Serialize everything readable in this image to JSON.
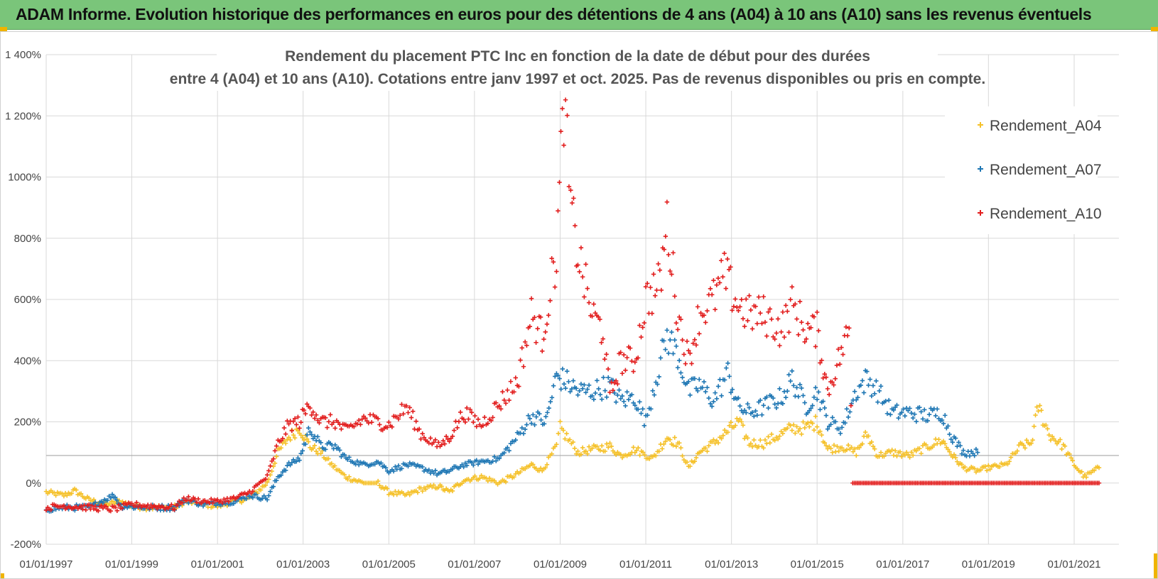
{
  "banner": {
    "title": "ADAM Informe. Evolution historique des performances en euros pour des détentions de 4 ans (A04) à 10 ans (A10) sans les revenus éventuels"
  },
  "chart_data": {
    "type": "scatter",
    "title_line1": "Rendement du placement PTC Inc en fonction de la date de début pour des durées",
    "title_line2": "entre 4 (A04) et 10 ans (A10). Cotations entre janv 1997 et oct. 2025. Pas de revenus disponibles ou pris en compte.",
    "ylim": [
      -200,
      1400
    ],
    "y_ticks": [
      -200,
      0,
      200,
      400,
      600,
      800,
      1000,
      1200,
      1400
    ],
    "y_tick_labels": [
      "-200%",
      "0%",
      "200%",
      "400%",
      "600%",
      "800%",
      "1000%",
      "1 200%",
      "1 400%"
    ],
    "x_ticks": [
      "1997-01-01",
      "1999-01-01",
      "2001-01-01",
      "2003-01-01",
      "2005-01-01",
      "2007-01-01",
      "2009-01-01",
      "2011-01-01",
      "2013-01-01",
      "2015-01-01",
      "2017-01-01",
      "2019-01-01",
      "2021-01-01"
    ],
    "x_tick_labels": [
      "01/01/1997",
      "01/01/1999",
      "01/01/2001",
      "01/01/2003",
      "01/01/2005",
      "01/01/2007",
      "01/01/2009",
      "01/01/2011",
      "01/01/2013",
      "01/01/2015",
      "01/01/2017",
      "01/01/2019",
      "01/01/2021"
    ],
    "xlim": [
      "1997-01-01",
      "2021-10-01"
    ],
    "grid": true,
    "legend_position": "top-right",
    "series": [
      {
        "name": "Rendement_A04",
        "color": "#f5c12a",
        "points": [
          [
            "1997-01-01",
            -30
          ],
          [
            "1997-06-01",
            -40
          ],
          [
            "1997-09-01",
            -25
          ],
          [
            "1998-01-01",
            -55
          ],
          [
            "1998-06-01",
            -70
          ],
          [
            "1998-10-01",
            -60
          ],
          [
            "1999-01-01",
            -75
          ],
          [
            "1999-06-01",
            -80
          ],
          [
            "2000-01-01",
            -80
          ],
          [
            "2000-04-01",
            -60
          ],
          [
            "2000-09-01",
            -70
          ],
          [
            "2001-01-01",
            -75
          ],
          [
            "2001-06-01",
            -60
          ],
          [
            "2001-10-01",
            -50
          ],
          [
            "2002-03-01",
            0
          ],
          [
            "2002-06-01",
            100
          ],
          [
            "2002-09-01",
            150
          ],
          [
            "2002-12-01",
            180
          ],
          [
            "2003-03-01",
            120
          ],
          [
            "2003-06-01",
            100
          ],
          [
            "2003-09-01",
            60
          ],
          [
            "2004-01-01",
            20
          ],
          [
            "2004-06-01",
            0
          ],
          [
            "2004-10-01",
            0
          ],
          [
            "2005-01-01",
            -30
          ],
          [
            "2005-06-01",
            -40
          ],
          [
            "2005-10-01",
            -20
          ],
          [
            "2006-03-01",
            -10
          ],
          [
            "2006-06-01",
            -30
          ],
          [
            "2006-10-01",
            10
          ],
          [
            "2007-03-01",
            20
          ],
          [
            "2007-08-01",
            0
          ],
          [
            "2008-01-01",
            30
          ],
          [
            "2008-05-01",
            60
          ],
          [
            "2008-08-01",
            40
          ],
          [
            "2008-12-01",
            120
          ],
          [
            "2009-01-01",
            180
          ],
          [
            "2009-06-01",
            100
          ],
          [
            "2009-10-01",
            110
          ],
          [
            "2010-03-01",
            120
          ],
          [
            "2010-06-01",
            90
          ],
          [
            "2010-10-01",
            110
          ],
          [
            "2011-03-01",
            80
          ],
          [
            "2011-07-01",
            150
          ],
          [
            "2011-10-01",
            130
          ],
          [
            "2012-01-01",
            50
          ],
          [
            "2012-04-01",
            100
          ],
          [
            "2012-08-01",
            130
          ],
          [
            "2012-12-01",
            170
          ],
          [
            "2013-03-01",
            200
          ],
          [
            "2013-06-01",
            130
          ],
          [
            "2013-10-01",
            130
          ],
          [
            "2014-03-01",
            160
          ],
          [
            "2014-06-01",
            180
          ],
          [
            "2014-10-01",
            180
          ],
          [
            "2015-01-01",
            200
          ],
          [
            "2015-04-01",
            110
          ],
          [
            "2015-08-01",
            120
          ],
          [
            "2015-12-01",
            100
          ],
          [
            "2016-03-01",
            160
          ],
          [
            "2016-06-01",
            90
          ],
          [
            "2016-10-01",
            100
          ],
          [
            "2017-03-01",
            90
          ],
          [
            "2017-08-01",
            120
          ],
          [
            "2017-12-01",
            140
          ],
          [
            "2018-03-01",
            90
          ],
          [
            "2018-06-01",
            50
          ],
          [
            "2018-10-01",
            40
          ],
          [
            "2019-01-01",
            50
          ],
          [
            "2019-06-01",
            60
          ],
          [
            "2019-10-01",
            120
          ],
          [
            "2020-01-01",
            130
          ],
          [
            "2020-03-01",
            250
          ],
          [
            "2020-06-01",
            160
          ],
          [
            "2020-10-01",
            120
          ],
          [
            "2021-01-01",
            60
          ],
          [
            "2021-04-01",
            20
          ],
          [
            "2021-08-01",
            50
          ]
        ]
      },
      {
        "name": "Rendement_A07",
        "color": "#1f77b4",
        "points": [
          [
            "1997-01-01",
            -85
          ],
          [
            "1997-06-01",
            -80
          ],
          [
            "1998-01-01",
            -80
          ],
          [
            "1998-08-01",
            -40
          ],
          [
            "1998-10-01",
            -75
          ],
          [
            "1999-06-01",
            -80
          ],
          [
            "2000-01-01",
            -80
          ],
          [
            "2000-04-01",
            -55
          ],
          [
            "2000-09-01",
            -70
          ],
          [
            "2001-01-01",
            -65
          ],
          [
            "2001-06-01",
            -60
          ],
          [
            "2001-10-01",
            -40
          ],
          [
            "2002-03-01",
            -50
          ],
          [
            "2002-06-01",
            20
          ],
          [
            "2002-09-01",
            60
          ],
          [
            "2002-12-01",
            80
          ],
          [
            "2003-03-01",
            180
          ],
          [
            "2003-06-01",
            120
          ],
          [
            "2003-10-01",
            120
          ],
          [
            "2004-01-01",
            80
          ],
          [
            "2004-06-01",
            60
          ],
          [
            "2004-10-01",
            70
          ],
          [
            "2005-01-01",
            40
          ],
          [
            "2005-06-01",
            60
          ],
          [
            "2005-10-01",
            50
          ],
          [
            "2006-03-01",
            30
          ],
          [
            "2006-06-01",
            40
          ],
          [
            "2006-10-01",
            60
          ],
          [
            "2007-03-01",
            70
          ],
          [
            "2007-08-01",
            80
          ],
          [
            "2008-01-01",
            150
          ],
          [
            "2008-05-01",
            220
          ],
          [
            "2008-09-01",
            200
          ],
          [
            "2008-12-01",
            350
          ],
          [
            "2009-03-01",
            330
          ],
          [
            "2009-06-01",
            300
          ],
          [
            "2009-10-01",
            300
          ],
          [
            "2010-03-01",
            320
          ],
          [
            "2010-06-01",
            270
          ],
          [
            "2010-10-01",
            280
          ],
          [
            "2011-01-01",
            200
          ],
          [
            "2011-03-01",
            300
          ],
          [
            "2011-07-01",
            480
          ],
          [
            "2011-10-01",
            420
          ],
          [
            "2012-01-01",
            300
          ],
          [
            "2012-04-01",
            320
          ],
          [
            "2012-08-01",
            270
          ],
          [
            "2012-12-01",
            360
          ],
          [
            "2013-03-01",
            250
          ],
          [
            "2013-06-01",
            230
          ],
          [
            "2013-10-01",
            250
          ],
          [
            "2014-03-01",
            280
          ],
          [
            "2014-06-01",
            340
          ],
          [
            "2014-10-01",
            250
          ],
          [
            "2015-01-01",
            300
          ],
          [
            "2015-04-01",
            200
          ],
          [
            "2015-08-01",
            180
          ],
          [
            "2015-12-01",
            300
          ],
          [
            "2016-03-01",
            340
          ],
          [
            "2016-06-01",
            300
          ],
          [
            "2016-10-01",
            230
          ],
          [
            "2017-03-01",
            230
          ],
          [
            "2017-08-01",
            220
          ],
          [
            "2017-12-01",
            230
          ],
          [
            "2018-03-01",
            150
          ],
          [
            "2018-06-01",
            100
          ],
          [
            "2018-10-01",
            100
          ]
        ]
      },
      {
        "name": "Rendement_A10",
        "color": "#e21e1e",
        "points": [
          [
            "1997-01-01",
            -80
          ],
          [
            "1997-06-01",
            -75
          ],
          [
            "1998-01-01",
            -80
          ],
          [
            "1998-08-01",
            -85
          ],
          [
            "1999-01-01",
            -70
          ],
          [
            "1999-06-01",
            -75
          ],
          [
            "2000-01-01",
            -80
          ],
          [
            "2000-04-01",
            -50
          ],
          [
            "2000-09-01",
            -60
          ],
          [
            "2001-01-01",
            -60
          ],
          [
            "2001-06-01",
            -50
          ],
          [
            "2001-10-01",
            -30
          ],
          [
            "2002-03-01",
            20
          ],
          [
            "2002-06-01",
            130
          ],
          [
            "2002-09-01",
            190
          ],
          [
            "2002-12-01",
            200
          ],
          [
            "2003-03-01",
            260
          ],
          [
            "2003-06-01",
            200
          ],
          [
            "2003-10-01",
            200
          ],
          [
            "2004-01-01",
            170
          ],
          [
            "2004-06-01",
            210
          ],
          [
            "2004-10-01",
            200
          ],
          [
            "2005-01-01",
            190
          ],
          [
            "2005-06-01",
            250
          ],
          [
            "2005-10-01",
            160
          ],
          [
            "2006-03-01",
            120
          ],
          [
            "2006-06-01",
            150
          ],
          [
            "2006-10-01",
            230
          ],
          [
            "2007-03-01",
            190
          ],
          [
            "2007-08-01",
            260
          ],
          [
            "2008-01-01",
            330
          ],
          [
            "2008-05-01",
            550
          ],
          [
            "2008-08-01",
            480
          ],
          [
            "2008-12-01",
            750
          ],
          [
            "2009-02-01",
            1250
          ],
          [
            "2009-04-01",
            900
          ],
          [
            "2009-06-01",
            750
          ],
          [
            "2009-10-01",
            550
          ],
          [
            "2010-01-01",
            500
          ],
          [
            "2010-03-01",
            280
          ],
          [
            "2010-06-01",
            400
          ],
          [
            "2010-10-01",
            400
          ],
          [
            "2011-01-01",
            600
          ],
          [
            "2011-05-01",
            650
          ],
          [
            "2011-07-01",
            850
          ],
          [
            "2011-10-01",
            550
          ],
          [
            "2012-01-01",
            400
          ],
          [
            "2012-04-01",
            550
          ],
          [
            "2012-08-01",
            600
          ],
          [
            "2012-11-01",
            680
          ],
          [
            "2013-03-01",
            580
          ],
          [
            "2013-06-01",
            550
          ],
          [
            "2013-10-01",
            550
          ],
          [
            "2014-03-01",
            500
          ],
          [
            "2014-06-01",
            580
          ],
          [
            "2014-10-01",
            500
          ],
          [
            "2015-01-01",
            500
          ],
          [
            "2015-04-01",
            300
          ],
          [
            "2015-07-01",
            400
          ],
          [
            "2015-10-01",
            500
          ],
          [
            "2015-11-01",
            0
          ],
          [
            "2016-06-01",
            0
          ],
          [
            "2017-01-01",
            0
          ],
          [
            "2017-06-01",
            0
          ],
          [
            "2018-01-01",
            0
          ],
          [
            "2018-06-01",
            0
          ],
          [
            "2019-01-01",
            0
          ],
          [
            "2019-06-01",
            0
          ],
          [
            "2020-01-01",
            0
          ],
          [
            "2020-06-01",
            0
          ],
          [
            "2021-01-01",
            0
          ],
          [
            "2021-08-01",
            0
          ]
        ]
      }
    ],
    "reference_line_y": 90
  }
}
